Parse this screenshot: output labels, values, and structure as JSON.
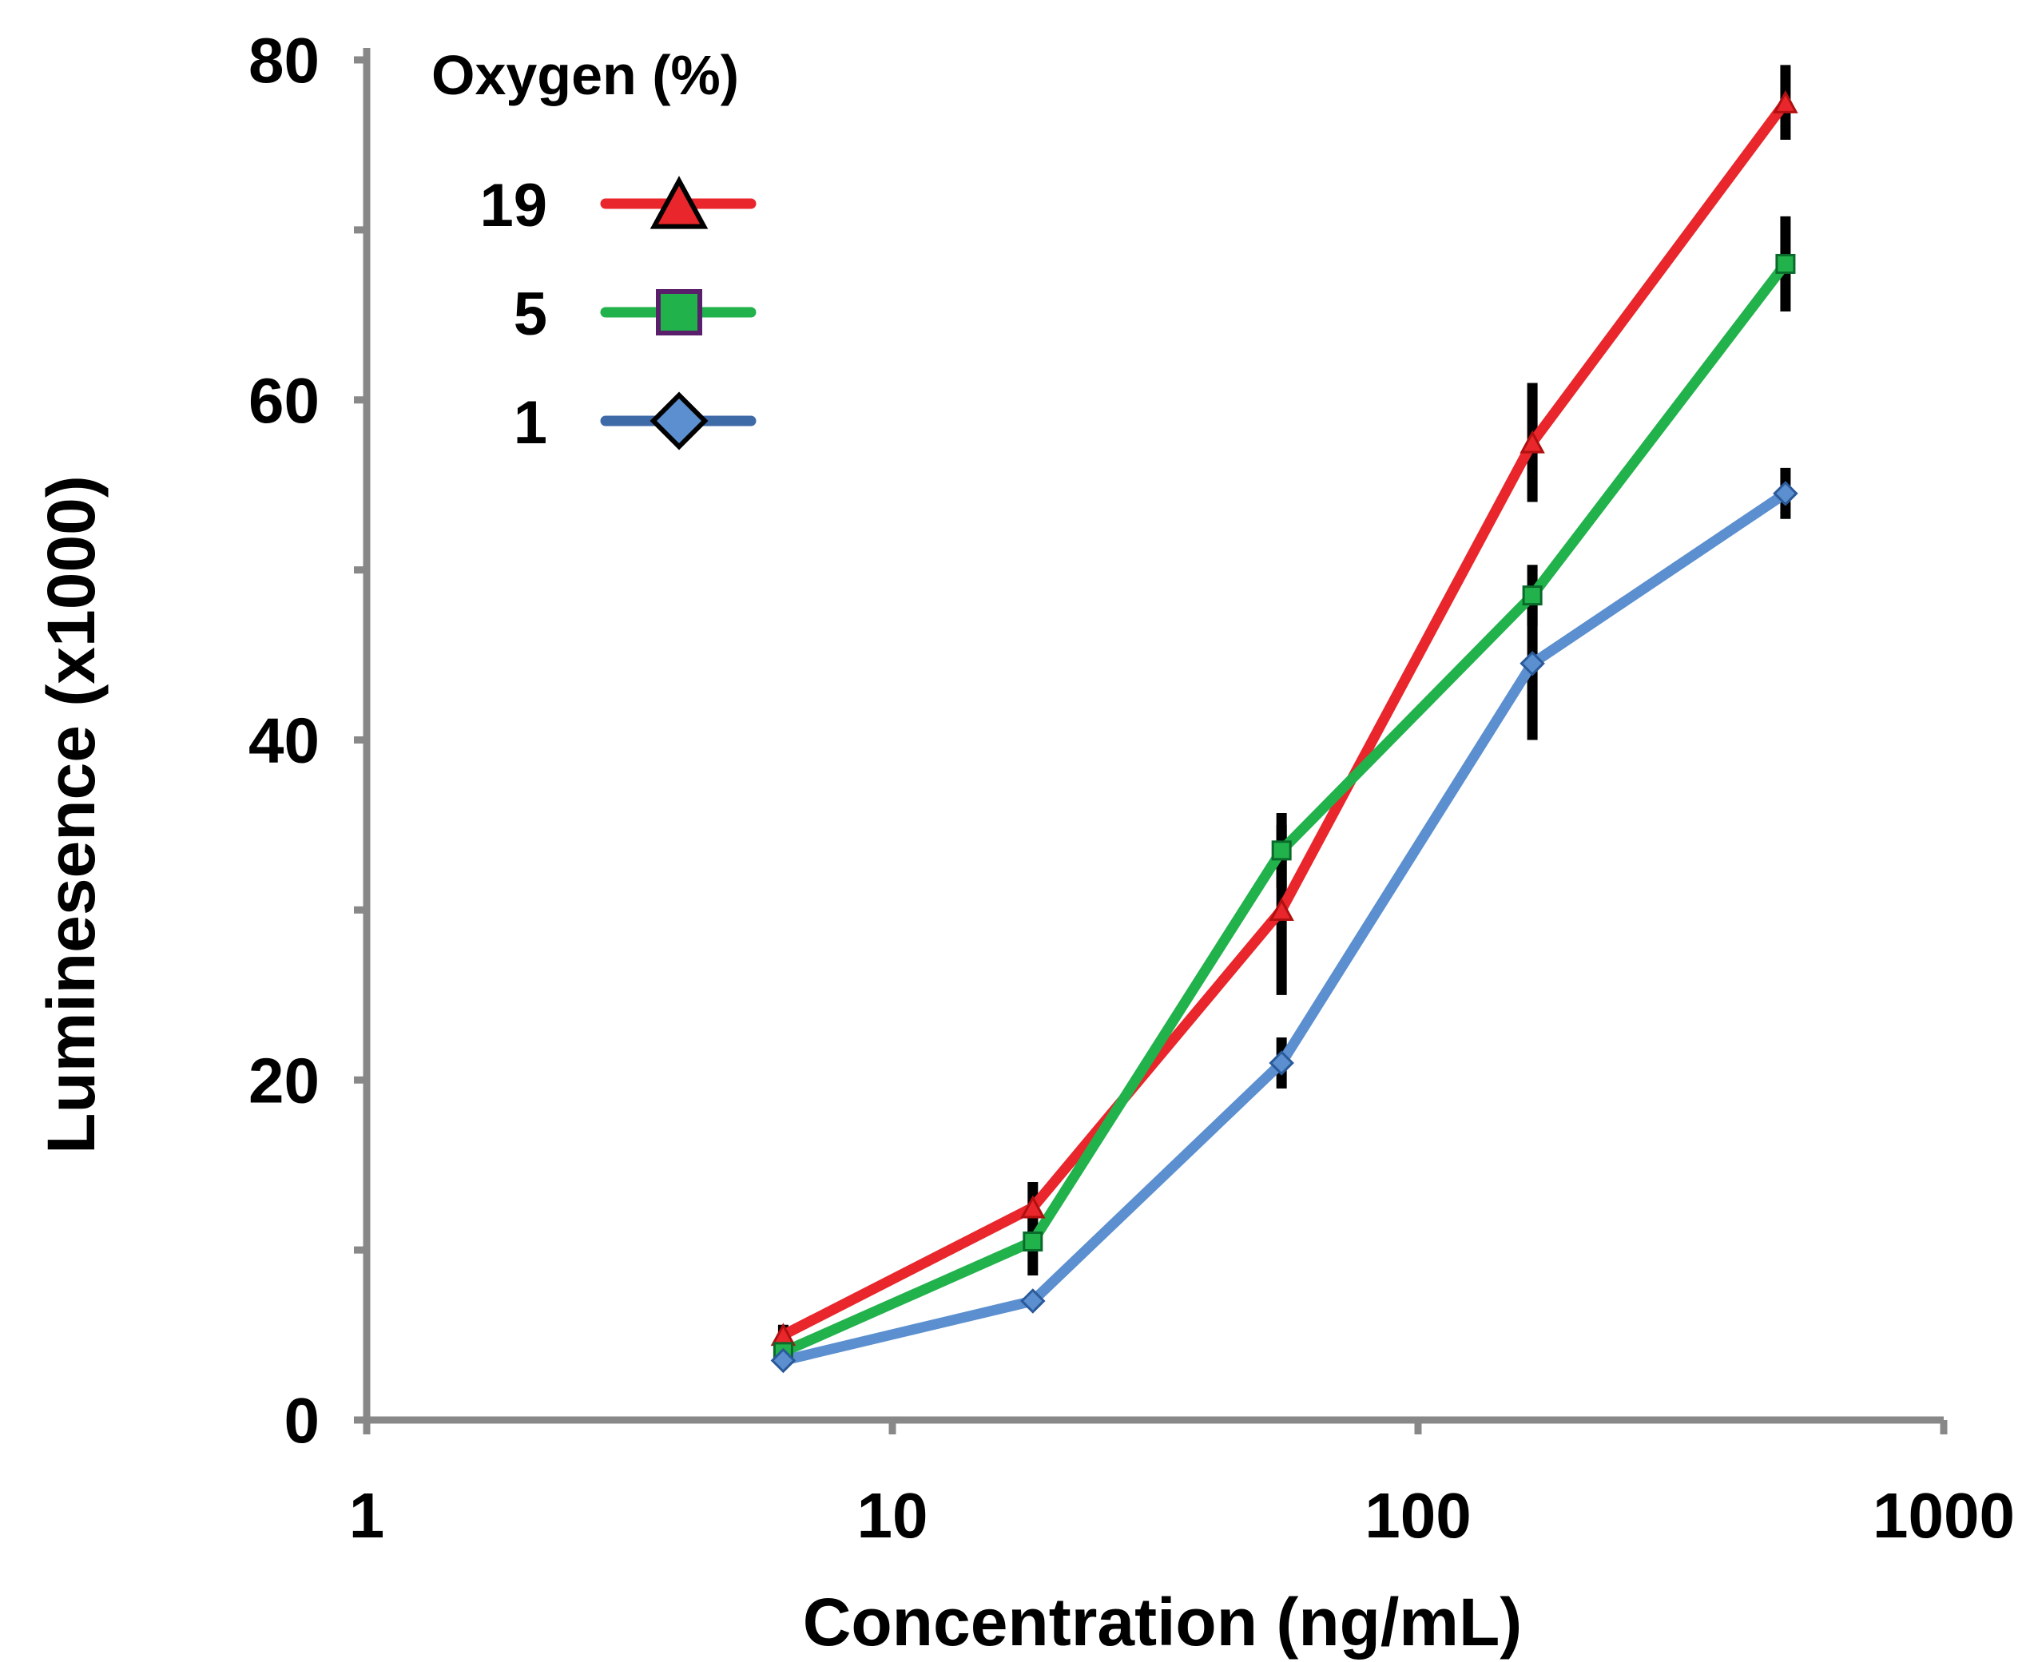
{
  "chart_data": {
    "type": "line",
    "xlabel": "Concentration (ng/mL)",
    "ylabel": "Luminesence (x1000)",
    "x_scale": "log",
    "xlim": [
      1,
      1000
    ],
    "ylim": [
      0,
      80
    ],
    "x_ticks": [
      1,
      10,
      100,
      1000
    ],
    "x_tick_labels": [
      "1",
      "10",
      "100",
      "1000"
    ],
    "y_ticks": [
      0,
      20,
      40,
      60,
      80
    ],
    "y_tick_labels": [
      "0",
      "20",
      "40",
      "60",
      "80"
    ],
    "legend": {
      "title": "Oxygen (%)",
      "placement": "top-left"
    },
    "x": [
      6.2,
      18.5,
      55,
      165,
      500
    ],
    "series": [
      {
        "name": "19",
        "color": "#e8262b",
        "marker": "triangle",
        "values": [
          5.0,
          12.5,
          30.0,
          57.5,
          77.5
        ],
        "errors": [
          0.6,
          1.5,
          5.0,
          3.5,
          2.2
        ]
      },
      {
        "name": "5",
        "color": "#22b24c",
        "marker": "square",
        "values": [
          4.0,
          10.5,
          33.5,
          48.5,
          68.0
        ],
        "errors": [
          0.4,
          2.0,
          2.2,
          1.8,
          2.8
        ]
      },
      {
        "name": "1",
        "color": "#5b8fcf",
        "marker": "diamond",
        "values": [
          3.5,
          7.0,
          21.0,
          44.5,
          54.5
        ],
        "errors": [
          0.3,
          0.4,
          1.5,
          4.5,
          1.5
        ]
      }
    ]
  }
}
